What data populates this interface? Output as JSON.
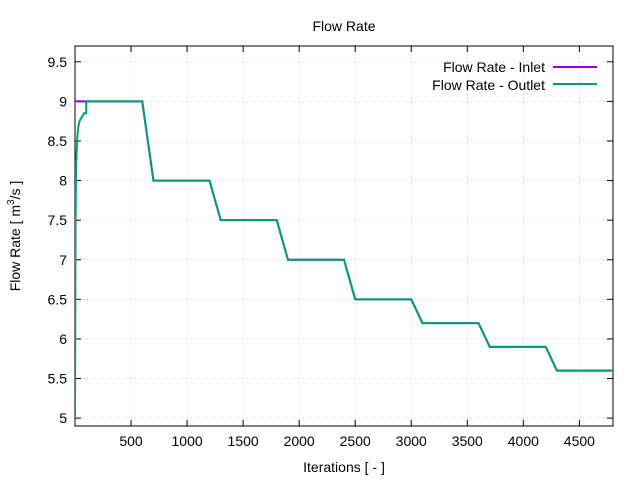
{
  "chart_data": {
    "type": "line",
    "title": "Flow Rate",
    "xlabel": "Iterations [ - ]",
    "ylabel_main": "Flow Rate [ m",
    "ylabel_sup": "3",
    "ylabel_end": "/s ]",
    "xlim": [
      0,
      4800
    ],
    "ylim": [
      4.9,
      9.7
    ],
    "xticks": [
      500,
      1000,
      1500,
      2000,
      2500,
      3000,
      3500,
      4000,
      4500
    ],
    "xtick_labels": [
      "500",
      "1000",
      "1500",
      "2000",
      "2500",
      "3000",
      "3500",
      "4000",
      "4500"
    ],
    "yticks": [
      5,
      5.5,
      6,
      6.5,
      7,
      7.5,
      8,
      8.5,
      9,
      9.5
    ],
    "ytick_labels": [
      "5",
      "5.5",
      "6",
      "6.5",
      "7",
      "7.5",
      "8",
      "8.5",
      "9",
      "9.5"
    ],
    "grid": true,
    "legend_position": "top-right",
    "series": [
      {
        "name": "Flow Rate - Inlet",
        "color": "#9400d3",
        "x": [
          0,
          600,
          700,
          1200,
          1300,
          1800,
          1900,
          2400,
          2500,
          3000,
          3100,
          3600,
          3700,
          4200,
          4300,
          4800
        ],
        "y": [
          9.0,
          9.0,
          8.0,
          8.0,
          7.5,
          7.5,
          7.0,
          7.0,
          6.5,
          6.5,
          6.2,
          6.2,
          5.9,
          5.9,
          5.6,
          5.6
        ]
      },
      {
        "name": "Flow Rate - Outlet",
        "color": "#009e73",
        "x": [
          0,
          5,
          10,
          20,
          30,
          40,
          60,
          80,
          100,
          100,
          600,
          700,
          1200,
          1300,
          1800,
          1900,
          2400,
          2500,
          3000,
          3100,
          3600,
          3700,
          4200,
          4300,
          4800
        ],
        "y": [
          5.0,
          7.5,
          8.2,
          8.55,
          8.68,
          8.75,
          8.8,
          8.85,
          8.85,
          9.0,
          9.0,
          8.0,
          8.0,
          7.5,
          7.5,
          7.0,
          7.0,
          6.5,
          6.5,
          6.2,
          6.2,
          5.9,
          5.9,
          5.6,
          5.6
        ]
      }
    ]
  }
}
